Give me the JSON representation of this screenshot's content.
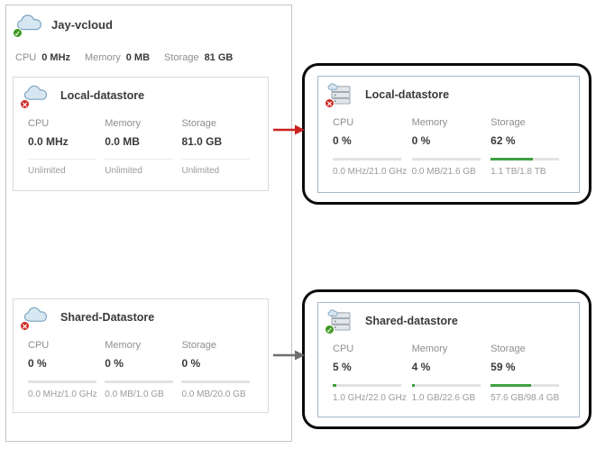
{
  "provider": {
    "title": "Jay-vcloud",
    "stats": [
      {
        "label": "CPU",
        "value": "0 MHz"
      },
      {
        "label": "Memory",
        "value": "0 MB"
      },
      {
        "label": "Storage",
        "value": "81 GB"
      }
    ]
  },
  "left_local": {
    "title": "Local-datastore",
    "columns": [
      {
        "label": "CPU",
        "value": "0.0 MHz",
        "caption": "Unlimited"
      },
      {
        "label": "Memory",
        "value": "0.0 MB",
        "caption": "Unlimited"
      },
      {
        "label": "Storage",
        "value": "81.0 GB",
        "caption": "Unlimited"
      }
    ]
  },
  "right_local": {
    "title": "Local-datastore",
    "columns": [
      {
        "label": "CPU",
        "value": "0 %",
        "percent": 0,
        "caption": "0.0 MHz/21.0 GHz"
      },
      {
        "label": "Memory",
        "value": "0 %",
        "percent": 0,
        "caption": "0.0 MB/21.6 GB"
      },
      {
        "label": "Storage",
        "value": "62 %",
        "percent": 62,
        "caption": "1.1 TB/1.8 TB"
      }
    ]
  },
  "left_shared": {
    "title": "Shared-Datastore",
    "columns": [
      {
        "label": "CPU",
        "value": "0 %",
        "percent": 0,
        "caption": "0.0 MHz/1.0 GHz"
      },
      {
        "label": "Memory",
        "value": "0 %",
        "percent": 0,
        "caption": "0.0 MB/1.0 GB"
      },
      {
        "label": "Storage",
        "value": "0 %",
        "percent": 0,
        "caption": "0.0 MB/20.0 GB"
      }
    ]
  },
  "right_shared": {
    "title": "Shared-datastore",
    "columns": [
      {
        "label": "CPU",
        "value": "5 %",
        "percent": 5,
        "caption": "1.0 GHz/22.0 GHz"
      },
      {
        "label": "Memory",
        "value": "4 %",
        "percent": 4,
        "caption": "1.0 GB/22.6 GB"
      },
      {
        "label": "Storage",
        "value": "59 %",
        "percent": 59,
        "caption": "57.6 GB/98.4 GB"
      }
    ]
  },
  "icons": {
    "provider_icon": "cloud-icon",
    "left_card_icon": "cloud-icon",
    "right_card_icon": "datastore-icon",
    "status_ok_glyph": "✓",
    "status_error_glyph": "✕"
  },
  "colors": {
    "progress_fill": "#3fa142",
    "progress_track": "#e3e3e3",
    "status_ok": "#3e9b1f",
    "status_error": "#cf2b27",
    "arrow_top": "#cc2222",
    "arrow_bottom": "#6e6e6e",
    "highlight_ring": "#0a0a0a",
    "selected_card_border": "#a3b8cc"
  }
}
